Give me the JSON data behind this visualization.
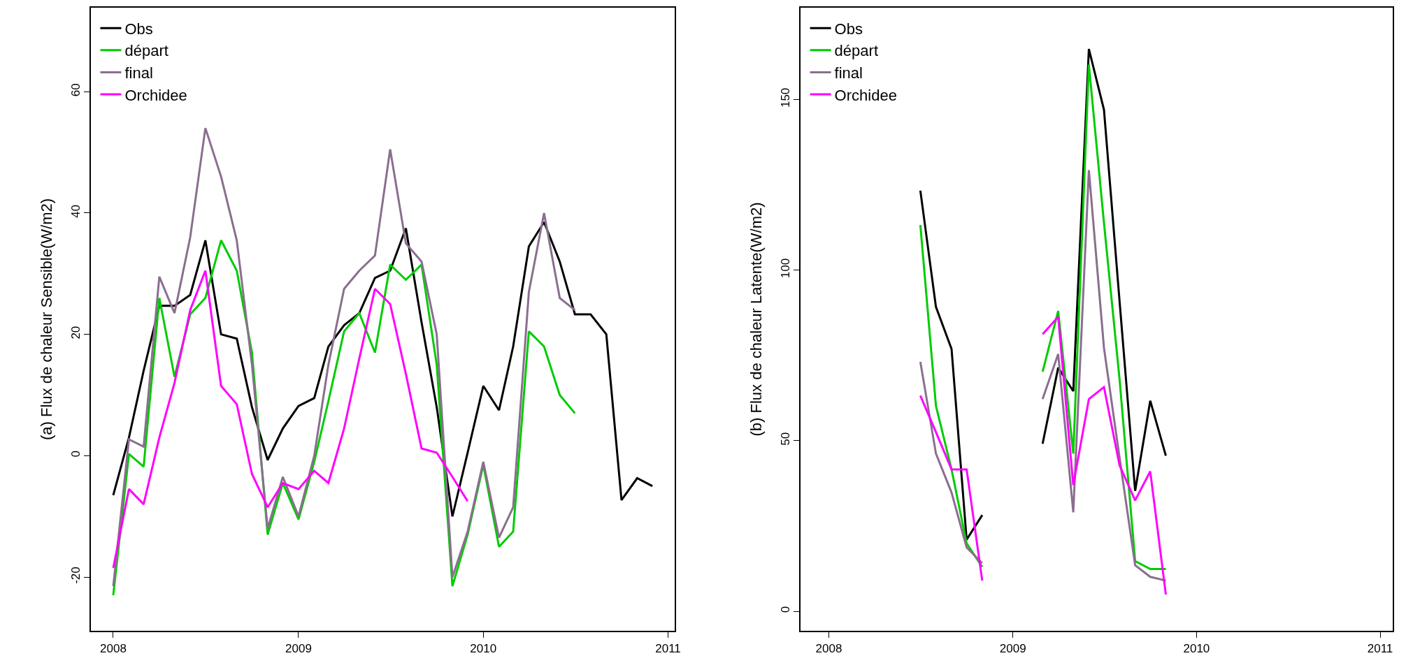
{
  "chart_data": [
    {
      "type": "line",
      "ylabel": "(a) Flux de chaleur Sensible(W/m2)",
      "x": [
        "2008-01",
        "2008-02",
        "2008-03",
        "2008-04",
        "2008-05",
        "2008-06",
        "2008-07",
        "2008-08",
        "2008-09",
        "2008-10",
        "2008-11",
        "2008-12",
        "2009-01",
        "2009-02",
        "2009-03",
        "2009-04",
        "2009-05",
        "2009-06",
        "2009-07",
        "2009-08",
        "2009-09",
        "2009-10",
        "2009-11",
        "2009-12",
        "2010-01",
        "2010-02",
        "2010-03",
        "2010-04",
        "2010-05",
        "2010-06",
        "2010-07",
        "2010-08",
        "2010-09",
        "2010-10",
        "2010-11",
        "2010-12"
      ],
      "series": [
        {
          "name": "Obs",
          "color": "#000000",
          "values": [
            -6.5,
            3,
            14,
            24.7,
            24.7,
            26.5,
            35.5,
            20,
            19.3,
            8,
            -0.7,
            4.5,
            8.2,
            9.5,
            18,
            21.5,
            23.5,
            29.3,
            30.5,
            37.5,
            22,
            8,
            -10,
            0.5,
            11.5,
            7.5,
            18,
            34.5,
            38.5,
            32,
            23.3,
            23.3,
            20,
            -7.3,
            -3.7,
            -5
          ]
        },
        {
          "name": "départ",
          "color": "#00cc00",
          "values": [
            -23,
            0.3,
            -1.8,
            26,
            13,
            23.3,
            26,
            35.5,
            30.5,
            17,
            -13,
            -4.5,
            -10.5,
            -1,
            9,
            20.5,
            23.5,
            17,
            31.5,
            29,
            31.5,
            15,
            -21.5,
            -13,
            -1.5,
            -15,
            -12.5,
            20.5,
            18,
            10,
            7,
            null,
            null,
            null,
            null,
            null
          ]
        },
        {
          "name": "final",
          "color": "#8b6e8f",
          "values": [
            -21.5,
            2.7,
            1.5,
            29.5,
            23.5,
            36,
            54,
            46,
            35.5,
            15,
            -12,
            -3.5,
            -10,
            0,
            15,
            27.5,
            30.5,
            33,
            50.5,
            35,
            32,
            20,
            -20,
            -12.5,
            -1,
            -13.5,
            -8.5,
            27,
            40,
            26,
            24,
            null,
            null,
            null,
            null,
            null
          ]
        },
        {
          "name": "Orchidee",
          "color": "#ff00ff",
          "values": [
            -18.5,
            -5.5,
            -8,
            3,
            12,
            24,
            30.5,
            11.5,
            8.5,
            -3,
            -8.5,
            -4.5,
            -5.5,
            -2.5,
            -4.5,
            4.5,
            16,
            27.5,
            25,
            13.5,
            1.2,
            0.5,
            -3.5,
            -7.5,
            null,
            null,
            null,
            null,
            null,
            null,
            null,
            null,
            null,
            null,
            null,
            null
          ]
        }
      ],
      "xlim": [
        "2007-11-18",
        "2011-01-14"
      ],
      "xticks": [
        "2008",
        "2009",
        "2010",
        "2011"
      ],
      "ylim": [
        -28.9,
        73.9
      ],
      "yticks": [
        -20,
        0,
        20,
        40,
        60
      ],
      "legend": "top left",
      "marker": "none",
      "line_style": "solid"
    },
    {
      "type": "line",
      "ylabel": "(b) Flux de chaleur Latente(W/m2)",
      "x": [
        "2008-07",
        "2008-08",
        "2008-09",
        "2008-10",
        "2008-11",
        "2008-12",
        "2009-01",
        "2009-02",
        "2009-03",
        "2009-04",
        "2009-05",
        "2009-06",
        "2009-07",
        "2009-08",
        "2009-09",
        "2009-10",
        "2009-11"
      ],
      "series": [
        {
          "name": "Obs",
          "color": "#000000",
          "values": [
            123.3,
            89.2,
            76.9,
            21,
            28.2,
            null,
            null,
            null,
            49.1,
            71.4,
            64.5,
            164.8,
            147,
            90.9,
            35.3,
            61.7,
            45.6
          ]
        },
        {
          "name": "départ",
          "color": "#00cc00",
          "values": [
            113.2,
            60.2,
            41.6,
            19.9,
            13,
            null,
            null,
            null,
            70.2,
            88,
            46.2,
            160.2,
            113.8,
            68,
            14.7,
            12.4,
            12.4
          ]
        },
        {
          "name": "final",
          "color": "#8b6e8f",
          "values": [
            73.1,
            46.2,
            34.8,
            18.7,
            14.1,
            null,
            null,
            null,
            62.2,
            75.4,
            29,
            129.3,
            77.2,
            45,
            13.5,
            10.1,
            9
          ]
        },
        {
          "name": "Orchidee",
          "color": "#ff00ff",
          "values": [
            63.2,
            52.5,
            41.6,
            41.6,
            9,
            null,
            null,
            null,
            81.2,
            86.3,
            37,
            62.2,
            65.7,
            42.8,
            32.5,
            41,
            4.9
          ]
        }
      ],
      "xlim": [
        "2007-11-06",
        "2011-01-26"
      ],
      "xticks": [
        "2008",
        "2009",
        "2010",
        "2011"
      ],
      "ylim": [
        -5.8,
        177
      ],
      "yticks": [
        0,
        50,
        100,
        150
      ],
      "legend": "top left",
      "marker": "none",
      "line_style": "solid"
    }
  ]
}
